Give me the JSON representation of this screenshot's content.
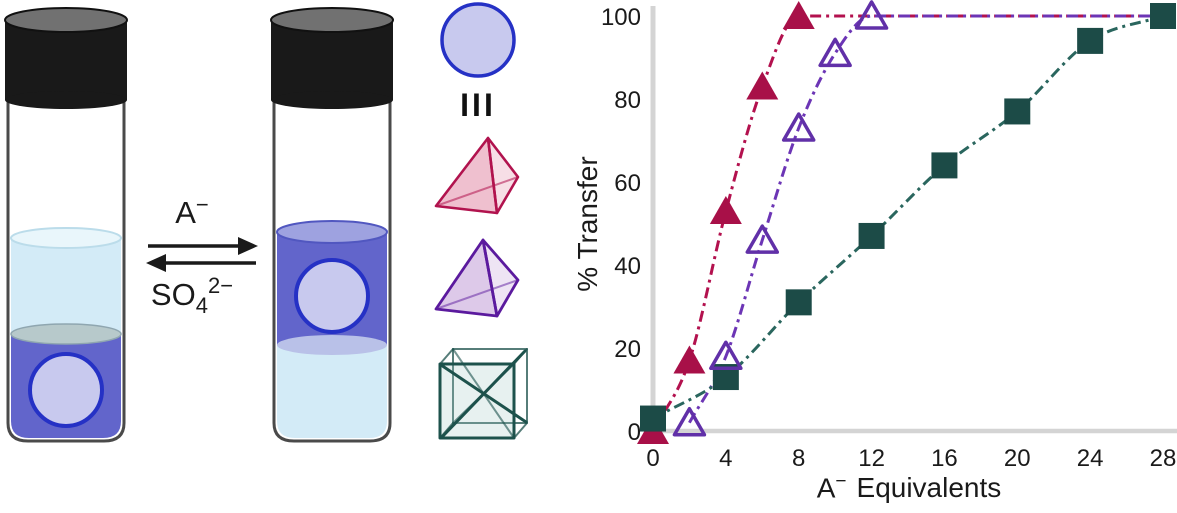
{
  "scheme": {
    "forward_arrow_label": {
      "base": "A",
      "sup": "−"
    },
    "reverse_arrow_label": {
      "base": "SO",
      "sub": "4",
      "sup": "2−"
    },
    "host_label": "III"
  },
  "colors": {
    "crimson_series": "#A81048",
    "crimson_line": "#B3114E",
    "purple_series": "#6130A8",
    "purple_line": "#6C35B5",
    "teal_series": "#1C4B47",
    "teal_line": "#2A665E",
    "vial_cap": "#191919",
    "vial_cap_top": "#717171",
    "aqueous_layer": "#D3EBF7",
    "aqueous_surface": "#E9F6FB",
    "organic_layer": "#6265CB",
    "organic_surface": "#9EA2E0",
    "interface_left": "#B7C9CB",
    "interface_right": "#B9C1E8",
    "host_circle_fill": "#C8C9EE",
    "host_circle_border": "#2531C5",
    "axis_gray": "#D4D4D4",
    "text": "#1A1A1A"
  },
  "chart_data": {
    "type": "line",
    "title": "",
    "xlabel": "A− Equivalents",
    "xlabel_base": "A",
    "xlabel_sup": "−",
    "xlabel_rest": "Equivalents",
    "ylabel": "% Transfer",
    "xlim": [
      0,
      28
    ],
    "ylim": [
      0,
      100
    ],
    "xticks": [
      0,
      4,
      8,
      12,
      16,
      20,
      24,
      28
    ],
    "yticks": [
      0,
      20,
      40,
      60,
      80,
      100
    ],
    "grid": false,
    "legend_position": "shape column left of plot (no text labels)",
    "line_style": "dash-dot",
    "series": [
      {
        "name": "red-filled-triangle",
        "legend_shape": "red-tetrahedron",
        "marker": "triangle-filled",
        "color": "#A81048",
        "line_color": "#B3114E",
        "x": [
          0,
          2,
          4,
          6,
          8
        ],
        "y": [
          0,
          17,
          53,
          83,
          100
        ],
        "plateau_to": 28,
        "z": 0
      },
      {
        "name": "purple-open-triangle",
        "legend_shape": "purple-tetrahedron",
        "marker": "triangle-open",
        "color": "#6130A8",
        "line_color": "#6C35B5",
        "x": [
          2,
          4,
          6,
          8,
          10,
          12
        ],
        "y": [
          2,
          18,
          46,
          73,
          91,
          100
        ],
        "plateau_to": 28,
        "z": 2
      },
      {
        "name": "teal-filled-square",
        "legend_shape": "teal-cube",
        "marker": "square-filled",
        "color": "#1C4B47",
        "line_color": "#2A665E",
        "x": [
          0,
          4,
          8,
          12,
          16,
          20,
          24,
          28
        ],
        "y": [
          3,
          13,
          31,
          47,
          64,
          77,
          94,
          100
        ],
        "z": 1
      }
    ]
  }
}
